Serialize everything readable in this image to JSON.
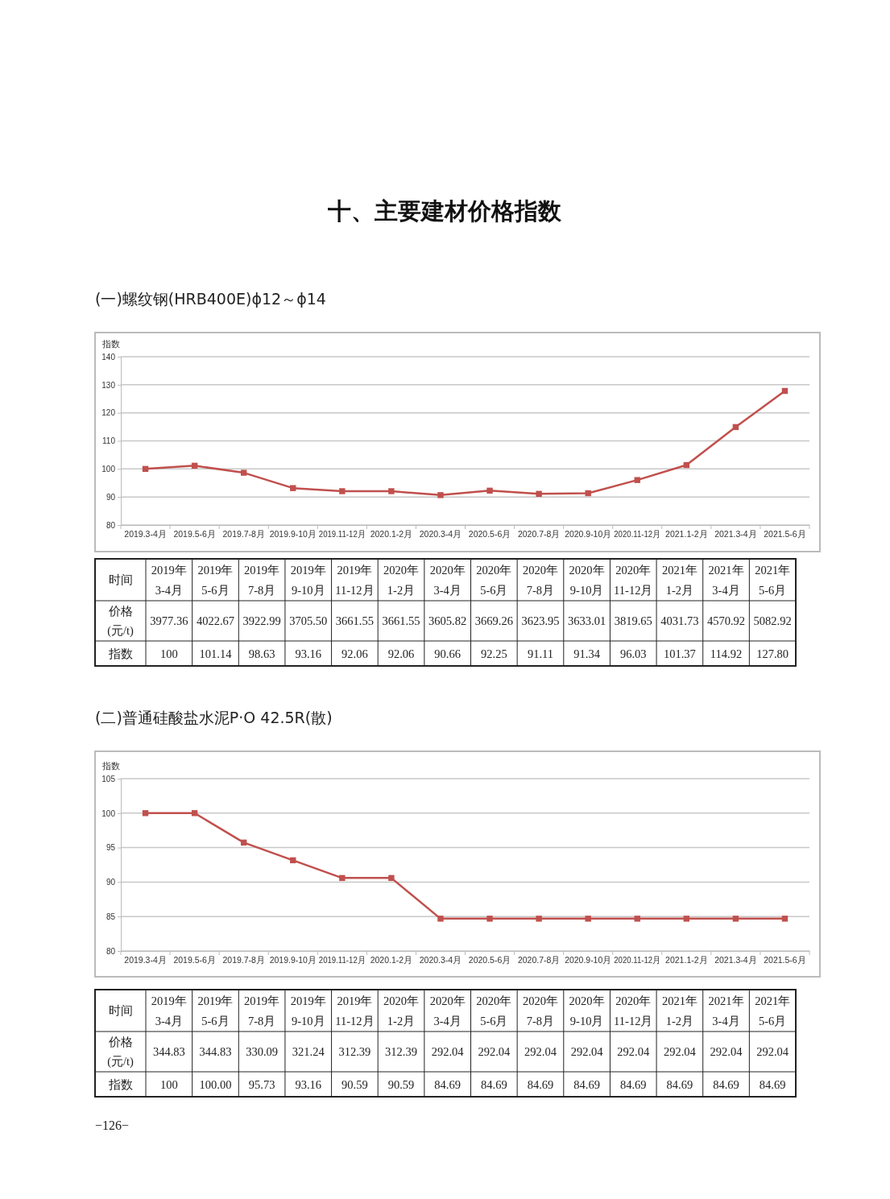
{
  "chart_data": [
    {
      "type": "line",
      "title": "(一)螺纹钢(HRB400E)ϕ12～ϕ14",
      "ylabel": "指数",
      "annotations": [
        "十、主要建材价格指数"
      ],
      "categories": [
        "2019.3-4月",
        "2019.5-6月",
        "2019.7-8月",
        "2019.9-10月",
        "2019.11-12月",
        "2020.1-2月",
        "2020.3-4月",
        "2020.5-6月",
        "2020.7-8月",
        "2020.9-10月",
        "2020.11-12月",
        "2021.1-2月",
        "2021.3-4月",
        "2021.5-6月"
      ],
      "series": [
        {
          "color": "#c0504d",
          "values": [
            100,
            101.14,
            98.63,
            93.16,
            92.06,
            92.06,
            90.66,
            92.25,
            91.11,
            91.34,
            96.03,
            101.37,
            114.92,
            127.8
          ]
        }
      ],
      "ylim": [
        80,
        140
      ],
      "yticks": [
        80,
        90,
        100,
        110,
        120,
        130,
        140
      ],
      "grid": "y",
      "marker": "square",
      "line_style": "solid"
    },
    {
      "type": "other",
      "xlabel": "时间",
      "categories": [
        "2019年\n3-4月",
        "2019年\n5-6月",
        "2019年\n7-8月",
        "2019年\n9-10月",
        "2019年\n11-12月",
        "2020年\n1-2月",
        "2020年\n3-4月",
        "2020年\n5-6月",
        "2020年\n7-8月",
        "2020年\n9-10月",
        "2020年\n11-12月",
        "2021年\n1-2月",
        "2021年\n3-4月",
        "2021年\n5-6月"
      ],
      "series": [
        {
          "name": "价格\n(元/t)",
          "values": [
            3977.36,
            4022.67,
            3922.99,
            3705.5,
            3661.55,
            3661.55,
            3605.82,
            3669.26,
            3623.95,
            3633.01,
            3819.65,
            4031.73,
            4570.92,
            5082.92
          ],
          "value_labels": [
            "3977.36",
            "4022.67",
            "3922.99",
            "3705.50",
            "3661.55",
            "3661.55",
            "3605.82",
            "3669.26",
            "3623.95",
            "3633.01",
            "3819.65",
            "4031.73",
            "4570.92",
            "5082.92"
          ]
        },
        {
          "name": "指数",
          "values": [
            100,
            101.14,
            98.63,
            93.16,
            92.06,
            92.06,
            90.66,
            92.25,
            91.11,
            91.34,
            96.03,
            101.37,
            114.92,
            127.8
          ],
          "value_labels": [
            "100",
            "101.14",
            "98.63",
            "93.16",
            "92.06",
            "92.06",
            "90.66",
            "92.25",
            "91.11",
            "91.34",
            "96.03",
            "101.37",
            "114.92",
            "127.80"
          ]
        }
      ]
    },
    {
      "type": "line",
      "title": "(二)普通硅酸盐水泥P·O 42.5R(散)",
      "ylabel": "指数",
      "categories": [
        "2019.3-4月",
        "2019.5-6月",
        "2019.7-8月",
        "2019.9-10月",
        "2019.11-12月",
        "2020.1-2月",
        "2020.3-4月",
        "2020.5-6月",
        "2020.7-8月",
        "2020.9-10月",
        "2020.11-12月",
        "2021.1-2月",
        "2021.3-4月",
        "2021.5-6月"
      ],
      "series": [
        {
          "color": "#c0504d",
          "values": [
            100,
            100.0,
            95.73,
            93.16,
            90.59,
            90.59,
            84.69,
            84.69,
            84.69,
            84.69,
            84.69,
            84.69,
            84.69,
            84.69
          ]
        }
      ],
      "ylim": [
        80,
        105
      ],
      "yticks": [
        80,
        85,
        90,
        95,
        100,
        105
      ],
      "grid": "y",
      "marker": "square",
      "line_style": "solid"
    },
    {
      "type": "other",
      "xlabel": "时间",
      "annotations": [
        "−126−"
      ],
      "categories": [
        "2019年\n3-4月",
        "2019年\n5-6月",
        "2019年\n7-8月",
        "2019年\n9-10月",
        "2019年\n11-12月",
        "2020年\n1-2月",
        "2020年\n3-4月",
        "2020年\n5-6月",
        "2020年\n7-8月",
        "2020年\n9-10月",
        "2020年\n11-12月",
        "2021年\n1-2月",
        "2021年\n3-4月",
        "2021年\n5-6月"
      ],
      "series": [
        {
          "name": "价格\n(元/t)",
          "values": [
            344.83,
            344.83,
            330.09,
            321.24,
            312.39,
            312.39,
            292.04,
            292.04,
            292.04,
            292.04,
            292.04,
            292.04,
            292.04,
            292.04
          ],
          "value_labels": [
            "344.83",
            "344.83",
            "330.09",
            "321.24",
            "312.39",
            "312.39",
            "292.04",
            "292.04",
            "292.04",
            "292.04",
            "292.04",
            "292.04",
            "292.04",
            "292.04"
          ]
        },
        {
          "name": "指数",
          "values": [
            100,
            100.0,
            95.73,
            93.16,
            90.59,
            90.59,
            84.69,
            84.69,
            84.69,
            84.69,
            84.69,
            84.69,
            84.69,
            84.69
          ],
          "value_labels": [
            "100",
            "100.00",
            "95.73",
            "93.16",
            "90.59",
            "90.59",
            "84.69",
            "84.69",
            "84.69",
            "84.69",
            "84.69",
            "84.69",
            "84.69",
            "84.69"
          ]
        }
      ]
    }
  ]
}
